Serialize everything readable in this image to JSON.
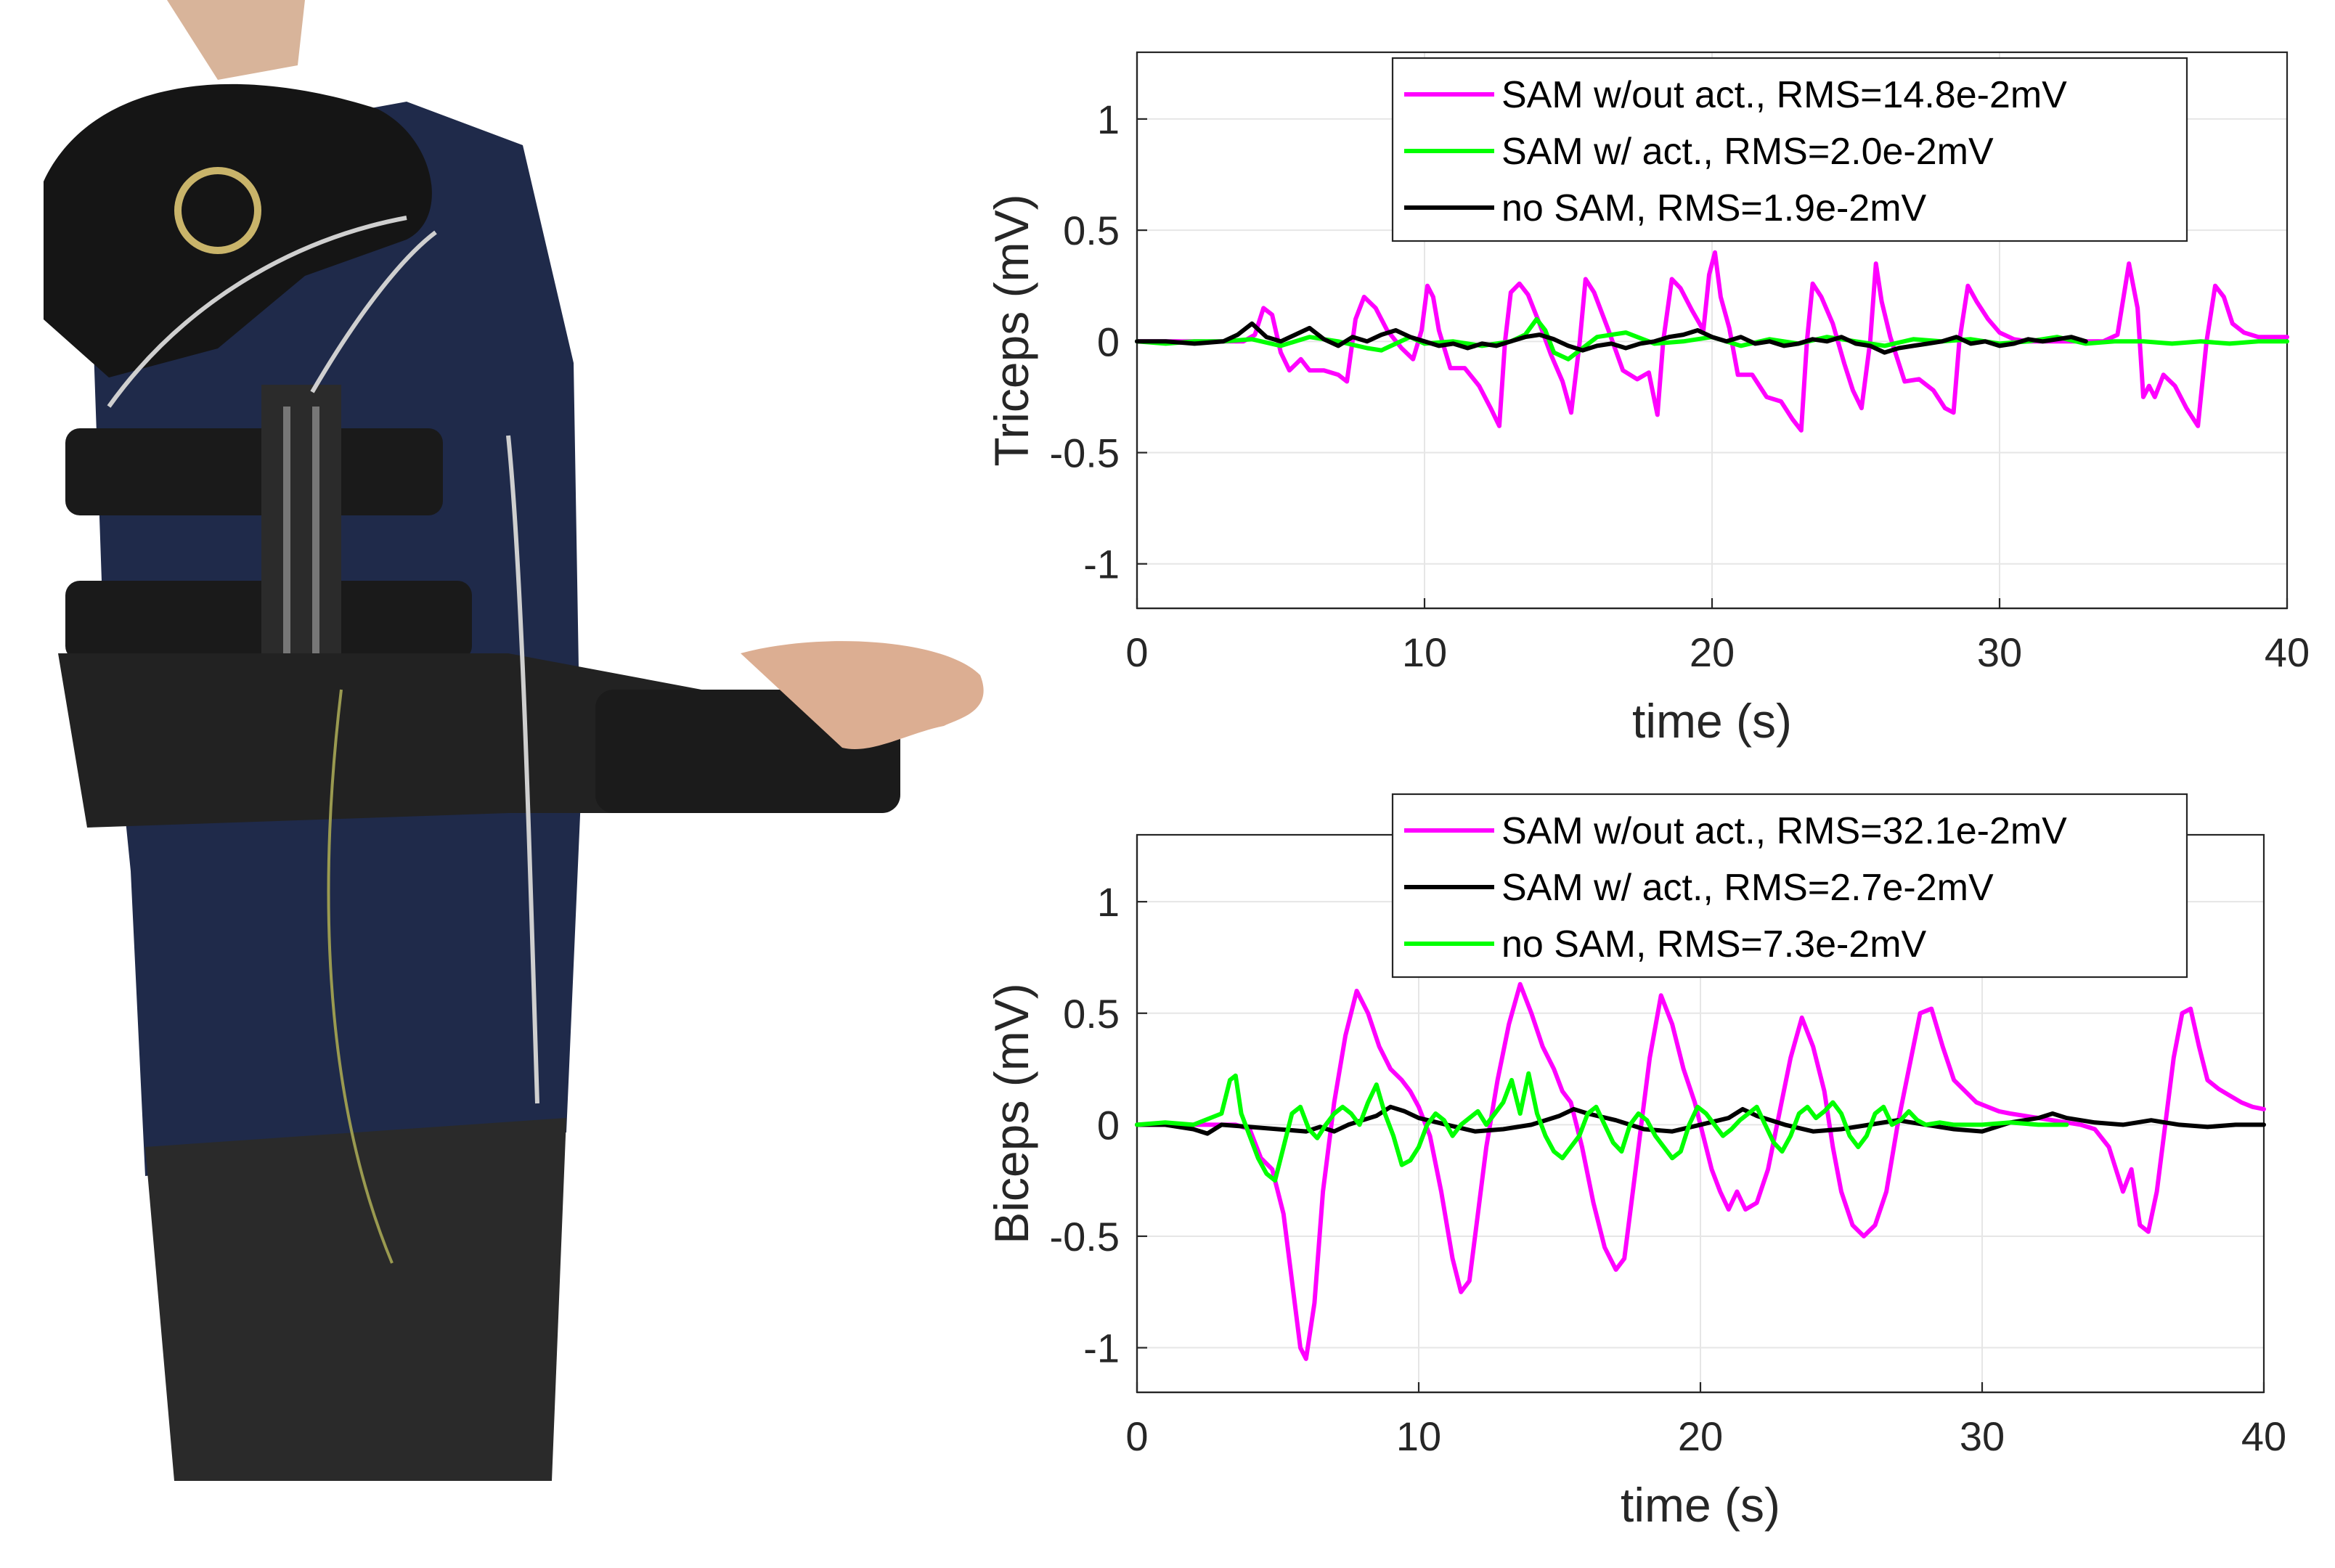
{
  "colors": {
    "magenta": "#ff00ff",
    "green": "#00ff00",
    "black": "#000000",
    "axis": "#262626",
    "grid": "#e6e6e6"
  },
  "chart_data": [
    {
      "type": "line",
      "xlabel": "time (s)",
      "ylabel": "Triceps (mV)",
      "xlim": [
        0,
        40
      ],
      "ylim": [
        -1.2,
        1.3
      ],
      "xticks": [
        0,
        10,
        20,
        30,
        40
      ],
      "yticks": [
        1,
        0.5,
        0,
        -0.5,
        -1
      ],
      "xtick_labels": [
        "0",
        "10",
        "20",
        "30",
        "40"
      ],
      "ytick_labels": [
        "1",
        "0.5",
        "0",
        "-0.5",
        "-1"
      ],
      "grid": true,
      "legend_position": "top-right",
      "series": [
        {
          "name": "SAM w/out act., RMS=14.8e-2mV",
          "color": "#ff00ff",
          "x": [
            0,
            1,
            2,
            3,
            3.7,
            4.1,
            4.4,
            4.7,
            5.0,
            5.3,
            5.7,
            6.0,
            6.5,
            7.0,
            7.3,
            7.6,
            7.9,
            8.3,
            8.7,
            9.2,
            9.6,
            9.9,
            10.1,
            10.3,
            10.5,
            10.9,
            11.4,
            11.9,
            12.3,
            12.6,
            12.8,
            13.0,
            13.3,
            13.6,
            14.0,
            14.4,
            14.8,
            15.1,
            15.4,
            15.6,
            15.9,
            16.4,
            16.9,
            17.4,
            17.8,
            18.1,
            18.3,
            18.6,
            18.9,
            19.3,
            19.7,
            19.9,
            20.1,
            20.3,
            20.6,
            20.9,
            21.4,
            21.9,
            22.4,
            22.8,
            23.1,
            23.3,
            23.5,
            23.8,
            24.2,
            24.6,
            24.9,
            25.2,
            25.5,
            25.7,
            25.9,
            26.2,
            26.7,
            27.2,
            27.7,
            28.1,
            28.4,
            28.6,
            28.9,
            29.2,
            29.6,
            30.0,
            30.5,
            31.0,
            31.5,
            32.0,
            32.5,
            33.0,
            33.6,
            34.1,
            34.5,
            34.8,
            35.0,
            35.2,
            35.4,
            35.7,
            36.1,
            36.5,
            36.9,
            37.2,
            37.5,
            37.8,
            38.1,
            38.5,
            39.0,
            39.5,
            40.0
          ],
          "values": [
            0,
            0,
            0,
            0,
            0,
            0.03,
            0.15,
            0.12,
            -0.05,
            -0.13,
            -0.08,
            -0.13,
            -0.13,
            -0.15,
            -0.18,
            0.1,
            0.2,
            0.15,
            0.05,
            -0.03,
            -0.08,
            0.05,
            0.25,
            0.2,
            0.05,
            -0.12,
            -0.12,
            -0.2,
            -0.3,
            -0.38,
            0.0,
            0.22,
            0.26,
            0.21,
            0.08,
            -0.06,
            -0.18,
            -0.32,
            0.0,
            0.28,
            0.22,
            0.05,
            -0.13,
            -0.17,
            -0.14,
            -0.33,
            0.0,
            0.28,
            0.24,
            0.14,
            0.05,
            0.3,
            0.4,
            0.2,
            0.06,
            -0.15,
            -0.15,
            -0.25,
            -0.27,
            -0.35,
            -0.4,
            0.0,
            0.26,
            0.2,
            0.08,
            -0.1,
            -0.22,
            -0.3,
            0.0,
            0.35,
            0.18,
            0.02,
            -0.18,
            -0.17,
            -0.22,
            -0.3,
            -0.32,
            0.0,
            0.25,
            0.18,
            0.1,
            0.04,
            0.01,
            0.0,
            0.0,
            0.0,
            0.0,
            0.0,
            0.0,
            0.03,
            0.35,
            0.15,
            -0.25,
            -0.2,
            -0.25,
            -0.15,
            -0.2,
            -0.3,
            -0.38,
            0.0,
            0.25,
            0.2,
            0.08,
            0.04,
            0.02,
            0.02,
            0.02
          ]
        },
        {
          "name": "SAM w/ act., RMS=2.0e-2mV",
          "color": "#00ff00",
          "x": [
            0,
            1,
            2,
            3,
            4,
            5,
            6,
            7,
            8,
            8.5,
            9,
            9.5,
            10,
            11,
            12,
            13,
            13.5,
            13.9,
            14.2,
            14.5,
            15,
            15.5,
            16,
            17,
            18,
            19,
            20,
            21,
            22,
            23,
            24,
            25,
            26,
            27,
            28,
            29,
            30,
            31,
            32,
            33,
            34,
            35,
            36,
            37,
            38,
            39,
            40
          ],
          "values": [
            0,
            -0.01,
            0,
            0,
            0.01,
            -0.02,
            0.02,
            0,
            -0.03,
            -0.04,
            -0.01,
            0.02,
            -0.01,
            0.0,
            -0.02,
            0.0,
            0.03,
            0.1,
            0.05,
            -0.05,
            -0.08,
            -0.03,
            0.02,
            0.04,
            -0.01,
            0.0,
            0.02,
            -0.02,
            0.01,
            -0.01,
            0.02,
            0.0,
            -0.02,
            0.01,
            0.0,
            0.01,
            -0.01,
            0.0,
            0.02,
            -0.01,
            0.0,
            0.0,
            -0.01,
            0.0,
            -0.01,
            0.0,
            0.0
          ]
        },
        {
          "name": "no SAM, RMS=1.9e-2mV",
          "color": "#000000",
          "x": [
            0,
            1,
            2,
            3,
            3.5,
            4,
            4.5,
            5,
            5.5,
            6,
            6.5,
            7,
            7.5,
            8,
            8.5,
            9,
            9.5,
            10,
            10.5,
            11,
            11.5,
            12,
            12.5,
            13,
            13.5,
            14,
            14.5,
            15,
            15.5,
            16,
            16.5,
            17,
            17.5,
            18,
            18.5,
            19,
            19.5,
            20,
            20.5,
            21,
            21.5,
            22,
            22.5,
            23,
            23.5,
            24,
            24.5,
            25,
            25.5,
            26,
            26.5,
            27,
            27.5,
            28,
            28.5,
            29,
            29.5,
            30,
            30.5,
            31,
            31.5,
            32,
            32.5,
            33
          ],
          "values": [
            0,
            0,
            -0.01,
            0.0,
            0.03,
            0.08,
            0.02,
            0.0,
            0.03,
            0.06,
            0.01,
            -0.02,
            0.02,
            0.0,
            0.03,
            0.05,
            0.02,
            0.0,
            -0.02,
            -0.01,
            -0.03,
            -0.01,
            -0.02,
            0.0,
            0.02,
            0.03,
            0.01,
            -0.02,
            -0.04,
            -0.02,
            -0.01,
            -0.03,
            -0.01,
            0.0,
            0.02,
            0.03,
            0.05,
            0.02,
            0.0,
            0.02,
            -0.01,
            0.0,
            -0.02,
            -0.01,
            0.01,
            0.0,
            0.02,
            -0.01,
            -0.02,
            -0.05,
            -0.03,
            -0.02,
            -0.01,
            0.0,
            0.02,
            -0.01,
            0.0,
            -0.02,
            -0.01,
            0.01,
            0.0,
            0.01,
            0.02,
            0.0
          ]
        }
      ]
    },
    {
      "type": "line",
      "xlabel": "time (s)",
      "ylabel": "Biceps (mV)",
      "xlim": [
        0,
        40
      ],
      "ylim": [
        -1.2,
        1.3
      ],
      "xticks": [
        0,
        10,
        20,
        30,
        40
      ],
      "yticks": [
        1,
        0.5,
        0,
        -0.5,
        -1
      ],
      "xtick_labels": [
        "0",
        "10",
        "20",
        "30",
        "40"
      ],
      "ytick_labels": [
        "1",
        "0.5",
        "0",
        "-0.5",
        "-1"
      ],
      "grid": true,
      "legend_position": "top-right",
      "series": [
        {
          "name": "SAM w/out act., RMS=32.1e-2mV",
          "color": "#ff00ff",
          "x": [
            0,
            1,
            2,
            3,
            3.5,
            4.0,
            4.4,
            4.8,
            5.2,
            5.5,
            5.8,
            6.0,
            6.3,
            6.6,
            7.0,
            7.4,
            7.8,
            8.2,
            8.6,
            9.0,
            9.4,
            9.7,
            10.0,
            10.4,
            10.8,
            11.2,
            11.5,
            11.8,
            12.1,
            12.4,
            12.8,
            13.2,
            13.6,
            14.0,
            14.4,
            14.8,
            15.1,
            15.4,
            15.8,
            16.2,
            16.6,
            17.0,
            17.3,
            17.6,
            17.9,
            18.2,
            18.6,
            19.0,
            19.4,
            19.8,
            20.1,
            20.4,
            20.7,
            21.0,
            21.3,
            21.6,
            22.0,
            22.4,
            22.8,
            23.2,
            23.6,
            24.0,
            24.4,
            24.7,
            25.0,
            25.4,
            25.8,
            26.2,
            26.6,
            27.0,
            27.4,
            27.8,
            28.2,
            28.6,
            29.0,
            29.4,
            29.8,
            30.2,
            30.6,
            31.0,
            31.5,
            32.0,
            32.5,
            33.0,
            33.5,
            34.0,
            34.5,
            35.0,
            35.3,
            35.6,
            35.9,
            36.2,
            36.5,
            36.8,
            37.1,
            37.4,
            37.7,
            38.0,
            38.4,
            38.8,
            39.2,
            39.6,
            40.0
          ],
          "values": [
            0,
            0,
            0,
            0,
            0,
            -0.02,
            -0.15,
            -0.2,
            -0.4,
            -0.7,
            -1.0,
            -1.05,
            -0.8,
            -0.3,
            0.1,
            0.4,
            0.6,
            0.5,
            0.35,
            0.25,
            0.2,
            0.15,
            0.08,
            -0.05,
            -0.3,
            -0.6,
            -0.75,
            -0.7,
            -0.4,
            -0.1,
            0.2,
            0.45,
            0.63,
            0.5,
            0.35,
            0.25,
            0.15,
            0.1,
            -0.1,
            -0.35,
            -0.55,
            -0.65,
            -0.6,
            -0.3,
            0.0,
            0.3,
            0.58,
            0.45,
            0.25,
            0.1,
            -0.05,
            -0.2,
            -0.3,
            -0.38,
            -0.3,
            -0.38,
            -0.35,
            -0.2,
            0.05,
            0.3,
            0.48,
            0.35,
            0.15,
            -0.1,
            -0.3,
            -0.45,
            -0.5,
            -0.45,
            -0.3,
            0.0,
            0.25,
            0.5,
            0.52,
            0.35,
            0.2,
            0.15,
            0.1,
            0.08,
            0.06,
            0.05,
            0.04,
            0.03,
            0.02,
            0.01,
            0.0,
            -0.02,
            -0.1,
            -0.3,
            -0.2,
            -0.45,
            -0.48,
            -0.3,
            0.0,
            0.3,
            0.5,
            0.52,
            0.35,
            0.2,
            0.16,
            0.13,
            0.1,
            0.08,
            0.07
          ]
        },
        {
          "name": "SAM w/ act., RMS=2.7e-2mV",
          "color": "#000000",
          "x": [
            0,
            1,
            2,
            2.5,
            3,
            4,
            5,
            6,
            6.5,
            7,
            7.5,
            8,
            8.5,
            9,
            9.5,
            10,
            11,
            12,
            13,
            14,
            15,
            15.5,
            16,
            17,
            18,
            19,
            20,
            21,
            21.5,
            22,
            23,
            24,
            25,
            26,
            27,
            28,
            29,
            30,
            31,
            32,
            32.5,
            33,
            34,
            35,
            36,
            37,
            38,
            39,
            40
          ],
          "values": [
            0,
            0,
            -0.02,
            -0.04,
            0.0,
            -0.01,
            -0.02,
            -0.03,
            -0.01,
            -0.03,
            0.0,
            0.02,
            0.04,
            0.08,
            0.06,
            0.03,
            0.0,
            -0.03,
            -0.02,
            0.0,
            0.04,
            0.07,
            0.05,
            0.02,
            -0.02,
            -0.03,
            0.0,
            0.03,
            0.07,
            0.04,
            0.0,
            -0.03,
            -0.02,
            0.0,
            0.02,
            0.0,
            -0.02,
            -0.03,
            0.01,
            0.03,
            0.05,
            0.03,
            0.01,
            0.0,
            0.02,
            0.0,
            -0.01,
            0.0,
            0.0
          ]
        },
        {
          "name": "no SAM, RMS=7.3e-2mV",
          "color": "#00ff00",
          "x": [
            0,
            1,
            2,
            3,
            3.3,
            3.5,
            3.7,
            4.0,
            4.3,
            4.6,
            4.9,
            5.2,
            5.5,
            5.8,
            6.1,
            6.4,
            6.7,
            7.0,
            7.3,
            7.6,
            7.9,
            8.2,
            8.5,
            8.8,
            9.1,
            9.4,
            9.7,
            10.0,
            10.3,
            10.6,
            10.9,
            11.2,
            11.5,
            11.8,
            12.1,
            12.4,
            12.7,
            13.0,
            13.3,
            13.6,
            13.9,
            14.2,
            14.5,
            14.8,
            15.1,
            15.4,
            15.7,
            16.0,
            16.3,
            16.6,
            16.9,
            17.2,
            17.5,
            17.8,
            18.1,
            18.4,
            18.7,
            19.0,
            19.3,
            19.6,
            19.9,
            20.2,
            20.5,
            20.8,
            21.1,
            21.4,
            21.7,
            22.0,
            22.3,
            22.6,
            22.9,
            23.2,
            23.5,
            23.8,
            24.1,
            24.4,
            24.7,
            25.0,
            25.3,
            25.6,
            25.9,
            26.2,
            26.5,
            26.8,
            27.1,
            27.4,
            27.7,
            28.0,
            28.5,
            29,
            30,
            31,
            32,
            33
          ],
          "values": [
            0,
            0.01,
            0.0,
            0.05,
            0.2,
            0.22,
            0.05,
            -0.05,
            -0.15,
            -0.22,
            -0.25,
            -0.1,
            0.05,
            0.08,
            -0.02,
            -0.06,
            0.0,
            0.05,
            0.08,
            0.05,
            0.0,
            0.1,
            0.18,
            0.05,
            -0.05,
            -0.18,
            -0.16,
            -0.1,
            0.0,
            0.05,
            0.02,
            -0.05,
            0.0,
            0.03,
            0.06,
            0.0,
            0.05,
            0.1,
            0.2,
            0.05,
            0.23,
            0.05,
            -0.05,
            -0.12,
            -0.15,
            -0.1,
            -0.05,
            0.05,
            0.08,
            0.0,
            -0.08,
            -0.12,
            0.0,
            0.05,
            0.02,
            -0.05,
            -0.1,
            -0.15,
            -0.12,
            0.0,
            0.08,
            0.05,
            0.0,
            -0.05,
            -0.02,
            0.02,
            0.05,
            0.08,
            0.0,
            -0.08,
            -0.12,
            -0.05,
            0.05,
            0.08,
            0.03,
            0.06,
            0.1,
            0.05,
            -0.05,
            -0.1,
            -0.05,
            0.05,
            0.08,
            0.0,
            0.02,
            0.06,
            0.02,
            0.0,
            0.01,
            0.0,
            0.0,
            0.01,
            0.0,
            0.0
          ]
        }
      ]
    }
  ]
}
